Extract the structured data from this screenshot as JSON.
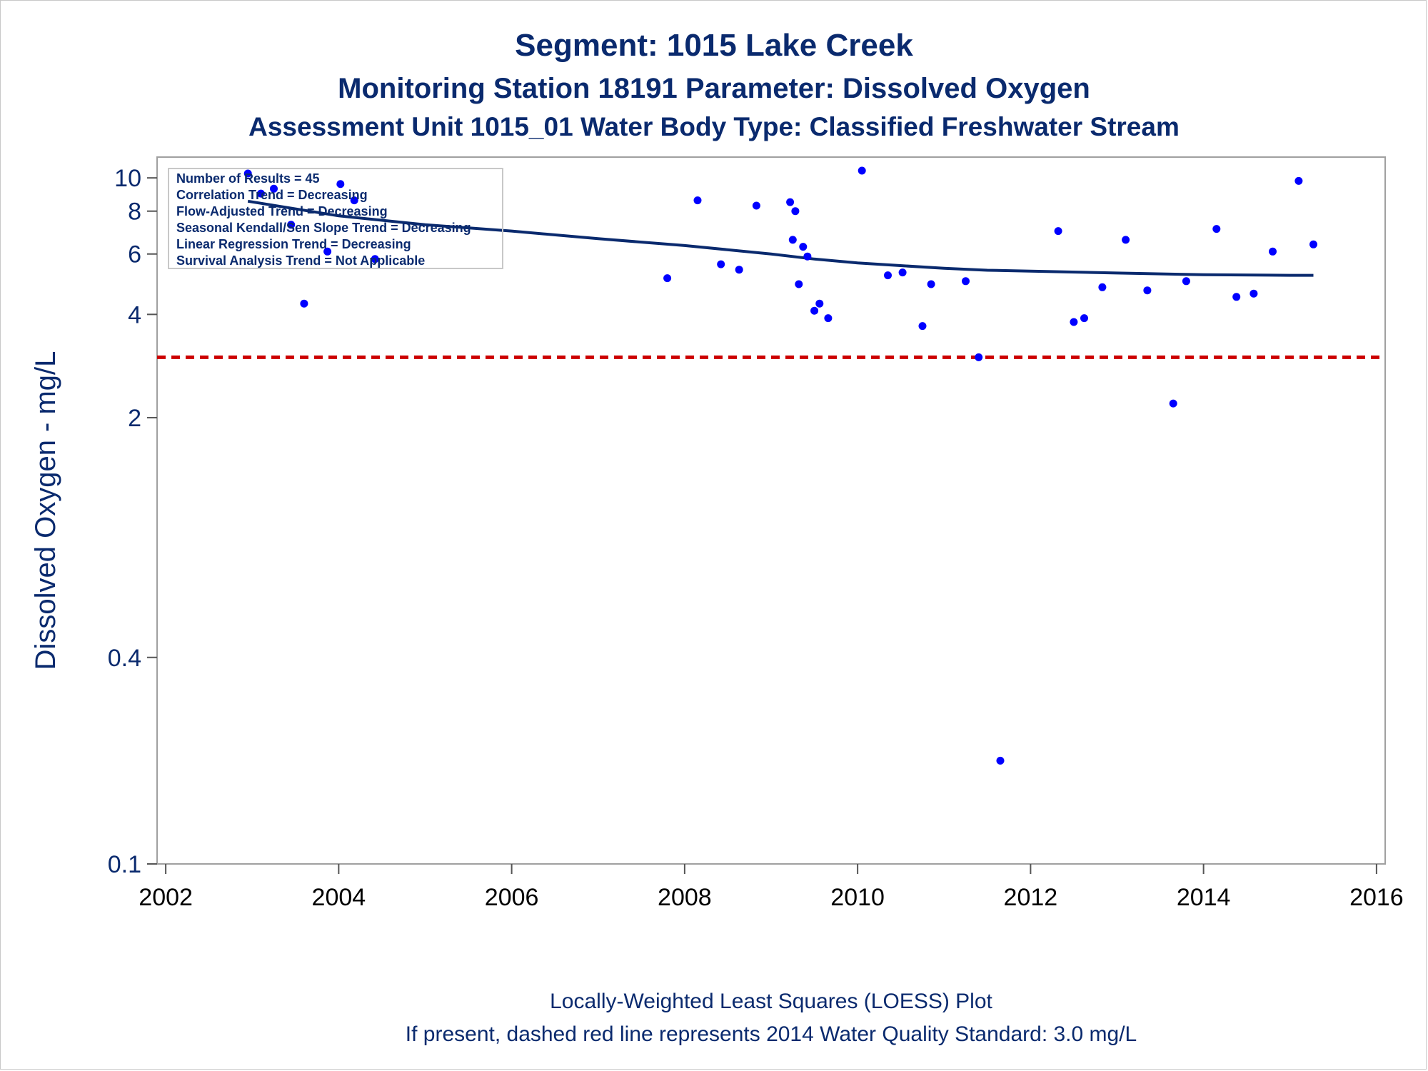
{
  "chart_data": {
    "type": "scatter",
    "title": "Segment: 1015  Lake Creek",
    "subtitle": "Monitoring Station 18191 Parameter: Dissolved Oxygen",
    "subtitle2": "Assessment Unit 1015_01   Water Body Type: Classified Freshwater Stream",
    "xlabel": "",
    "ylabel": "Dissolved Oxygen - mg/L",
    "y_scale": "log",
    "xlim": [
      2001.9,
      2016.1
    ],
    "ylim": [
      0.1,
      11.5
    ],
    "x_ticks": [
      2002,
      2004,
      2006,
      2008,
      2010,
      2012,
      2014,
      2016
    ],
    "y_ticks": [
      0.1,
      0.4,
      2,
      4,
      6,
      8,
      10
    ],
    "y_tick_labels": [
      "0.1",
      "0.4",
      "2",
      "4",
      "6",
      "8",
      "10"
    ],
    "stats_box": [
      "Number of Results = 45",
      "Correlation Trend = Decreasing",
      "Flow-Adjusted Trend = Decreasing",
      "Seasonal Kendall/Sen Slope Trend = Decreasing",
      "Linear Regression Trend = Decreasing",
      "Survival Analysis Trend = Not Applicable"
    ],
    "points": [
      {
        "x": 2002.95,
        "y": 10.3
      },
      {
        "x": 2003.1,
        "y": 9.0
      },
      {
        "x": 2003.25,
        "y": 9.3
      },
      {
        "x": 2003.45,
        "y": 7.3
      },
      {
        "x": 2003.6,
        "y": 4.3
      },
      {
        "x": 2003.87,
        "y": 6.1
      },
      {
        "x": 2004.02,
        "y": 9.6
      },
      {
        "x": 2004.18,
        "y": 8.6
      },
      {
        "x": 2004.42,
        "y": 5.8
      },
      {
        "x": 2007.8,
        "y": 5.1
      },
      {
        "x": 2008.15,
        "y": 8.6
      },
      {
        "x": 2008.42,
        "y": 5.6
      },
      {
        "x": 2008.63,
        "y": 5.4
      },
      {
        "x": 2008.83,
        "y": 8.3
      },
      {
        "x": 2009.22,
        "y": 8.5
      },
      {
        "x": 2009.25,
        "y": 6.6
      },
      {
        "x": 2009.28,
        "y": 8.0
      },
      {
        "x": 2009.32,
        "y": 4.9
      },
      {
        "x": 2009.37,
        "y": 6.3
      },
      {
        "x": 2009.42,
        "y": 5.9
      },
      {
        "x": 2009.5,
        "y": 4.1
      },
      {
        "x": 2009.56,
        "y": 4.3
      },
      {
        "x": 2009.66,
        "y": 3.9
      },
      {
        "x": 2010.05,
        "y": 10.5
      },
      {
        "x": 2010.35,
        "y": 5.2
      },
      {
        "x": 2010.52,
        "y": 5.3
      },
      {
        "x": 2010.75,
        "y": 3.7
      },
      {
        "x": 2010.85,
        "y": 4.9
      },
      {
        "x": 2011.25,
        "y": 5.0
      },
      {
        "x": 2011.4,
        "y": 3.0
      },
      {
        "x": 2011.65,
        "y": 0.2
      },
      {
        "x": 2012.32,
        "y": 7.0
      },
      {
        "x": 2012.5,
        "y": 3.8
      },
      {
        "x": 2012.62,
        "y": 3.9
      },
      {
        "x": 2012.83,
        "y": 4.8
      },
      {
        "x": 2013.1,
        "y": 6.6
      },
      {
        "x": 2013.35,
        "y": 4.7
      },
      {
        "x": 2013.65,
        "y": 2.2
      },
      {
        "x": 2013.8,
        "y": 5.0
      },
      {
        "x": 2014.15,
        "y": 7.1
      },
      {
        "x": 2014.38,
        "y": 4.5
      },
      {
        "x": 2014.58,
        "y": 4.6
      },
      {
        "x": 2014.8,
        "y": 6.1
      },
      {
        "x": 2015.1,
        "y": 9.8
      },
      {
        "x": 2015.27,
        "y": 6.4
      }
    ],
    "loess_line": [
      {
        "x": 2002.95,
        "y": 8.55
      },
      {
        "x": 2004.0,
        "y": 7.75
      },
      {
        "x": 2005.0,
        "y": 7.3
      },
      {
        "x": 2006.0,
        "y": 7.0
      },
      {
        "x": 2007.0,
        "y": 6.65
      },
      {
        "x": 2008.0,
        "y": 6.35
      },
      {
        "x": 2009.0,
        "y": 6.0
      },
      {
        "x": 2009.5,
        "y": 5.8
      },
      {
        "x": 2010.0,
        "y": 5.65
      },
      {
        "x": 2011.0,
        "y": 5.45
      },
      {
        "x": 2011.5,
        "y": 5.38
      },
      {
        "x": 2012.0,
        "y": 5.35
      },
      {
        "x": 2013.0,
        "y": 5.28
      },
      {
        "x": 2014.0,
        "y": 5.22
      },
      {
        "x": 2015.0,
        "y": 5.2
      },
      {
        "x": 2015.27,
        "y": 5.2
      }
    ],
    "standard_line": {
      "y": 3.0,
      "color": "#cc0000",
      "style": "dashed"
    },
    "point_color": "#0000ff",
    "line_color": "#0a2a6e",
    "footnotes": [
      "Locally-Weighted Least Squares (LOESS) Plot",
      "If present, dashed red line represents 2014 Water Quality Standard: 3.0 mg/L"
    ]
  }
}
